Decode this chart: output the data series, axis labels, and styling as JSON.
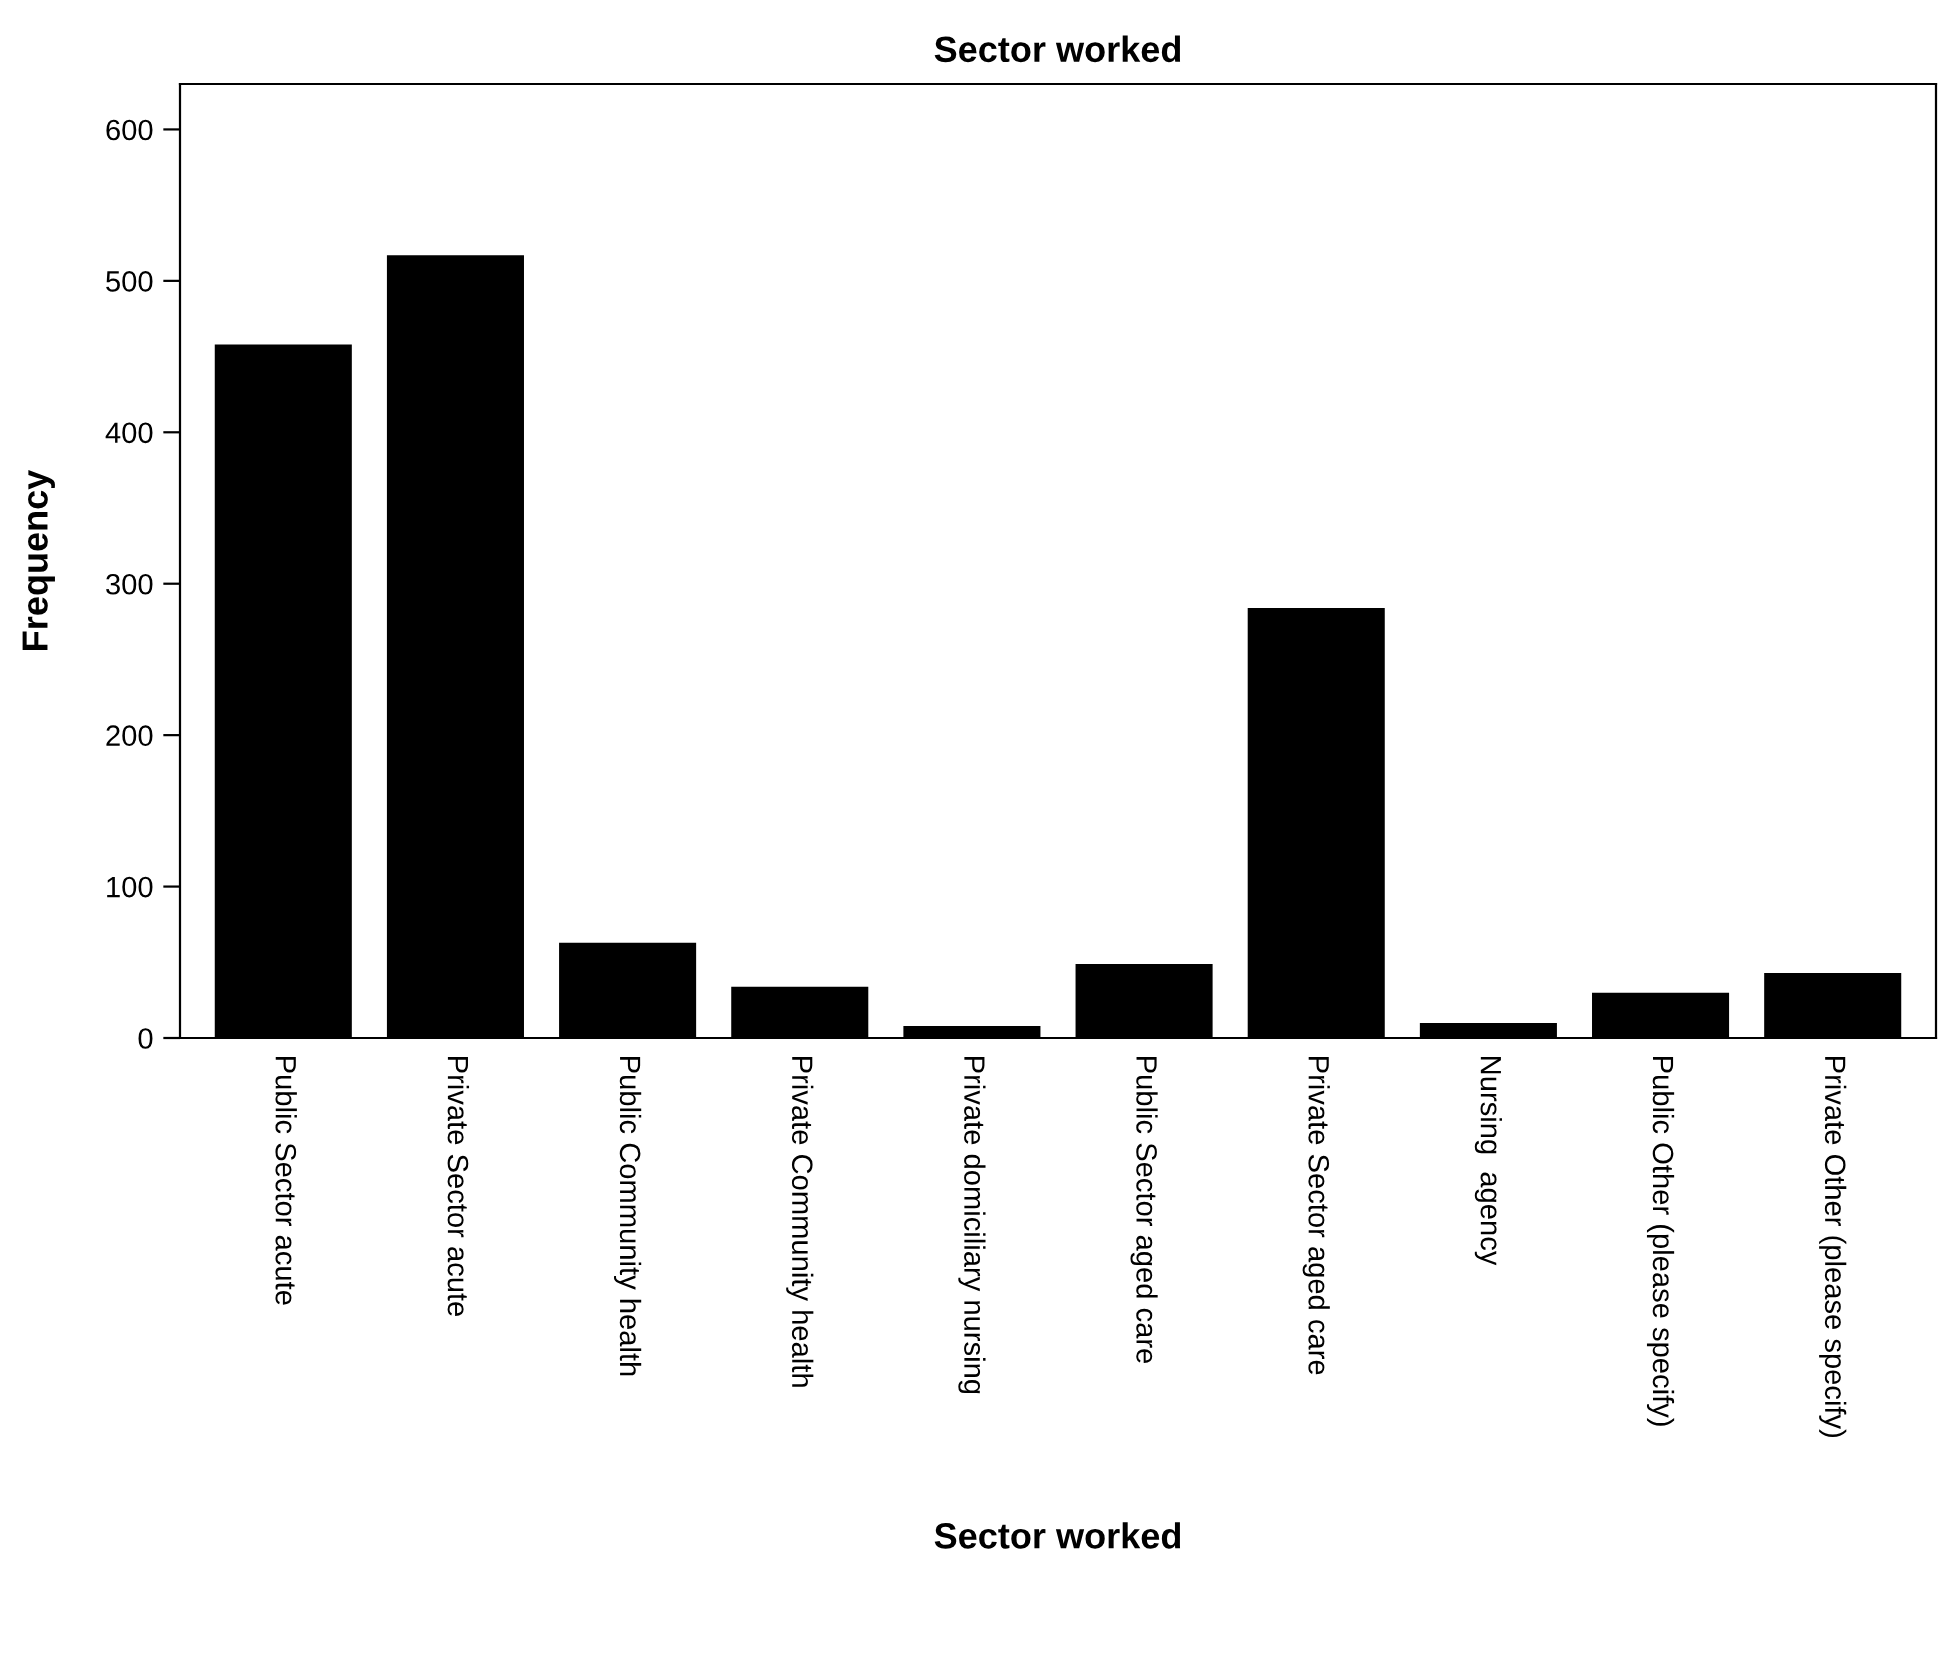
{
  "chart_data": {
    "type": "bar",
    "title": "Sector worked",
    "xlabel": "Sector worked",
    "ylabel": "Frequency",
    "categories": [
      "Public Sector acute",
      "Private Sector acute",
      "Public Community health",
      "Private Community health",
      "Private domiciliary nursing",
      "Public Sector aged care",
      "Private Sector aged care",
      "Nursing  agency",
      "Public Other (please specify)",
      "Private Other (please specify)"
    ],
    "values": [
      457,
      516,
      62,
      33,
      7,
      48,
      283,
      9,
      29,
      42
    ],
    "color": "#000000",
    "ylim": [
      0,
      630
    ],
    "yticks": [
      0,
      100,
      200,
      300,
      400,
      500,
      600
    ],
    "grid": false,
    "legend": false
  }
}
